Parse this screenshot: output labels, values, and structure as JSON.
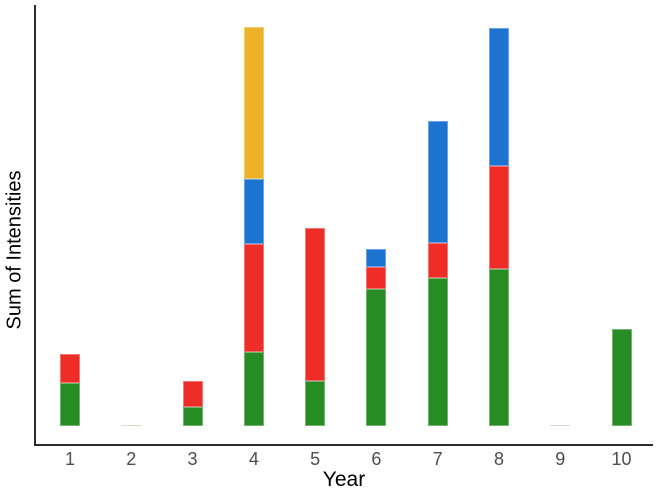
{
  "axes": {
    "y_label": "Sum of Intensities",
    "x_label": "Year"
  },
  "chart_data": {
    "type": "bar",
    "stacked": true,
    "title": "",
    "xlabel": "Year",
    "ylabel": "Sum of Intensities",
    "categories": [
      "1",
      "2",
      "3",
      "4",
      "5",
      "6",
      "7",
      "8",
      "9",
      "10"
    ],
    "series": [
      {
        "name": "green",
        "color": "#278C24",
        "values": [
          43,
          0,
          19,
          74,
          45,
          137,
          148,
          157,
          0,
          97
        ]
      },
      {
        "name": "red",
        "color": "#EE2C28",
        "values": [
          29,
          0,
          26,
          108,
          153,
          22,
          35,
          103,
          0,
          0
        ]
      },
      {
        "name": "blue",
        "color": "#1D73D1",
        "values": [
          0,
          0,
          0,
          65,
          0,
          18,
          122,
          138,
          0,
          0
        ]
      },
      {
        "name": "yellow",
        "color": "#ECB22A",
        "values": [
          0,
          1.5,
          0,
          152,
          0,
          0,
          0,
          0,
          1.5,
          0
        ]
      }
    ],
    "value_unit": "pixel-height (no numeric y-axis tick labels shown)",
    "ylim": [
      0,
      421
    ],
    "grid": false,
    "legend": "none",
    "tick_label_color": "#4d4d4d",
    "axis_line_color": "#2b2b2b",
    "tiny_bar_color": "#DDD8C7"
  }
}
